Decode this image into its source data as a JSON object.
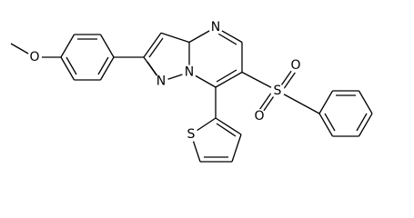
{
  "atoms": [
    {
      "label": "O"
    },
    {
      "label": "N"
    },
    {
      "label": "N"
    },
    {
      "label": "N"
    },
    {
      "label": "S"
    },
    {
      "label": "O"
    },
    {
      "label": "O"
    },
    {
      "label": "S"
    }
  ]
}
